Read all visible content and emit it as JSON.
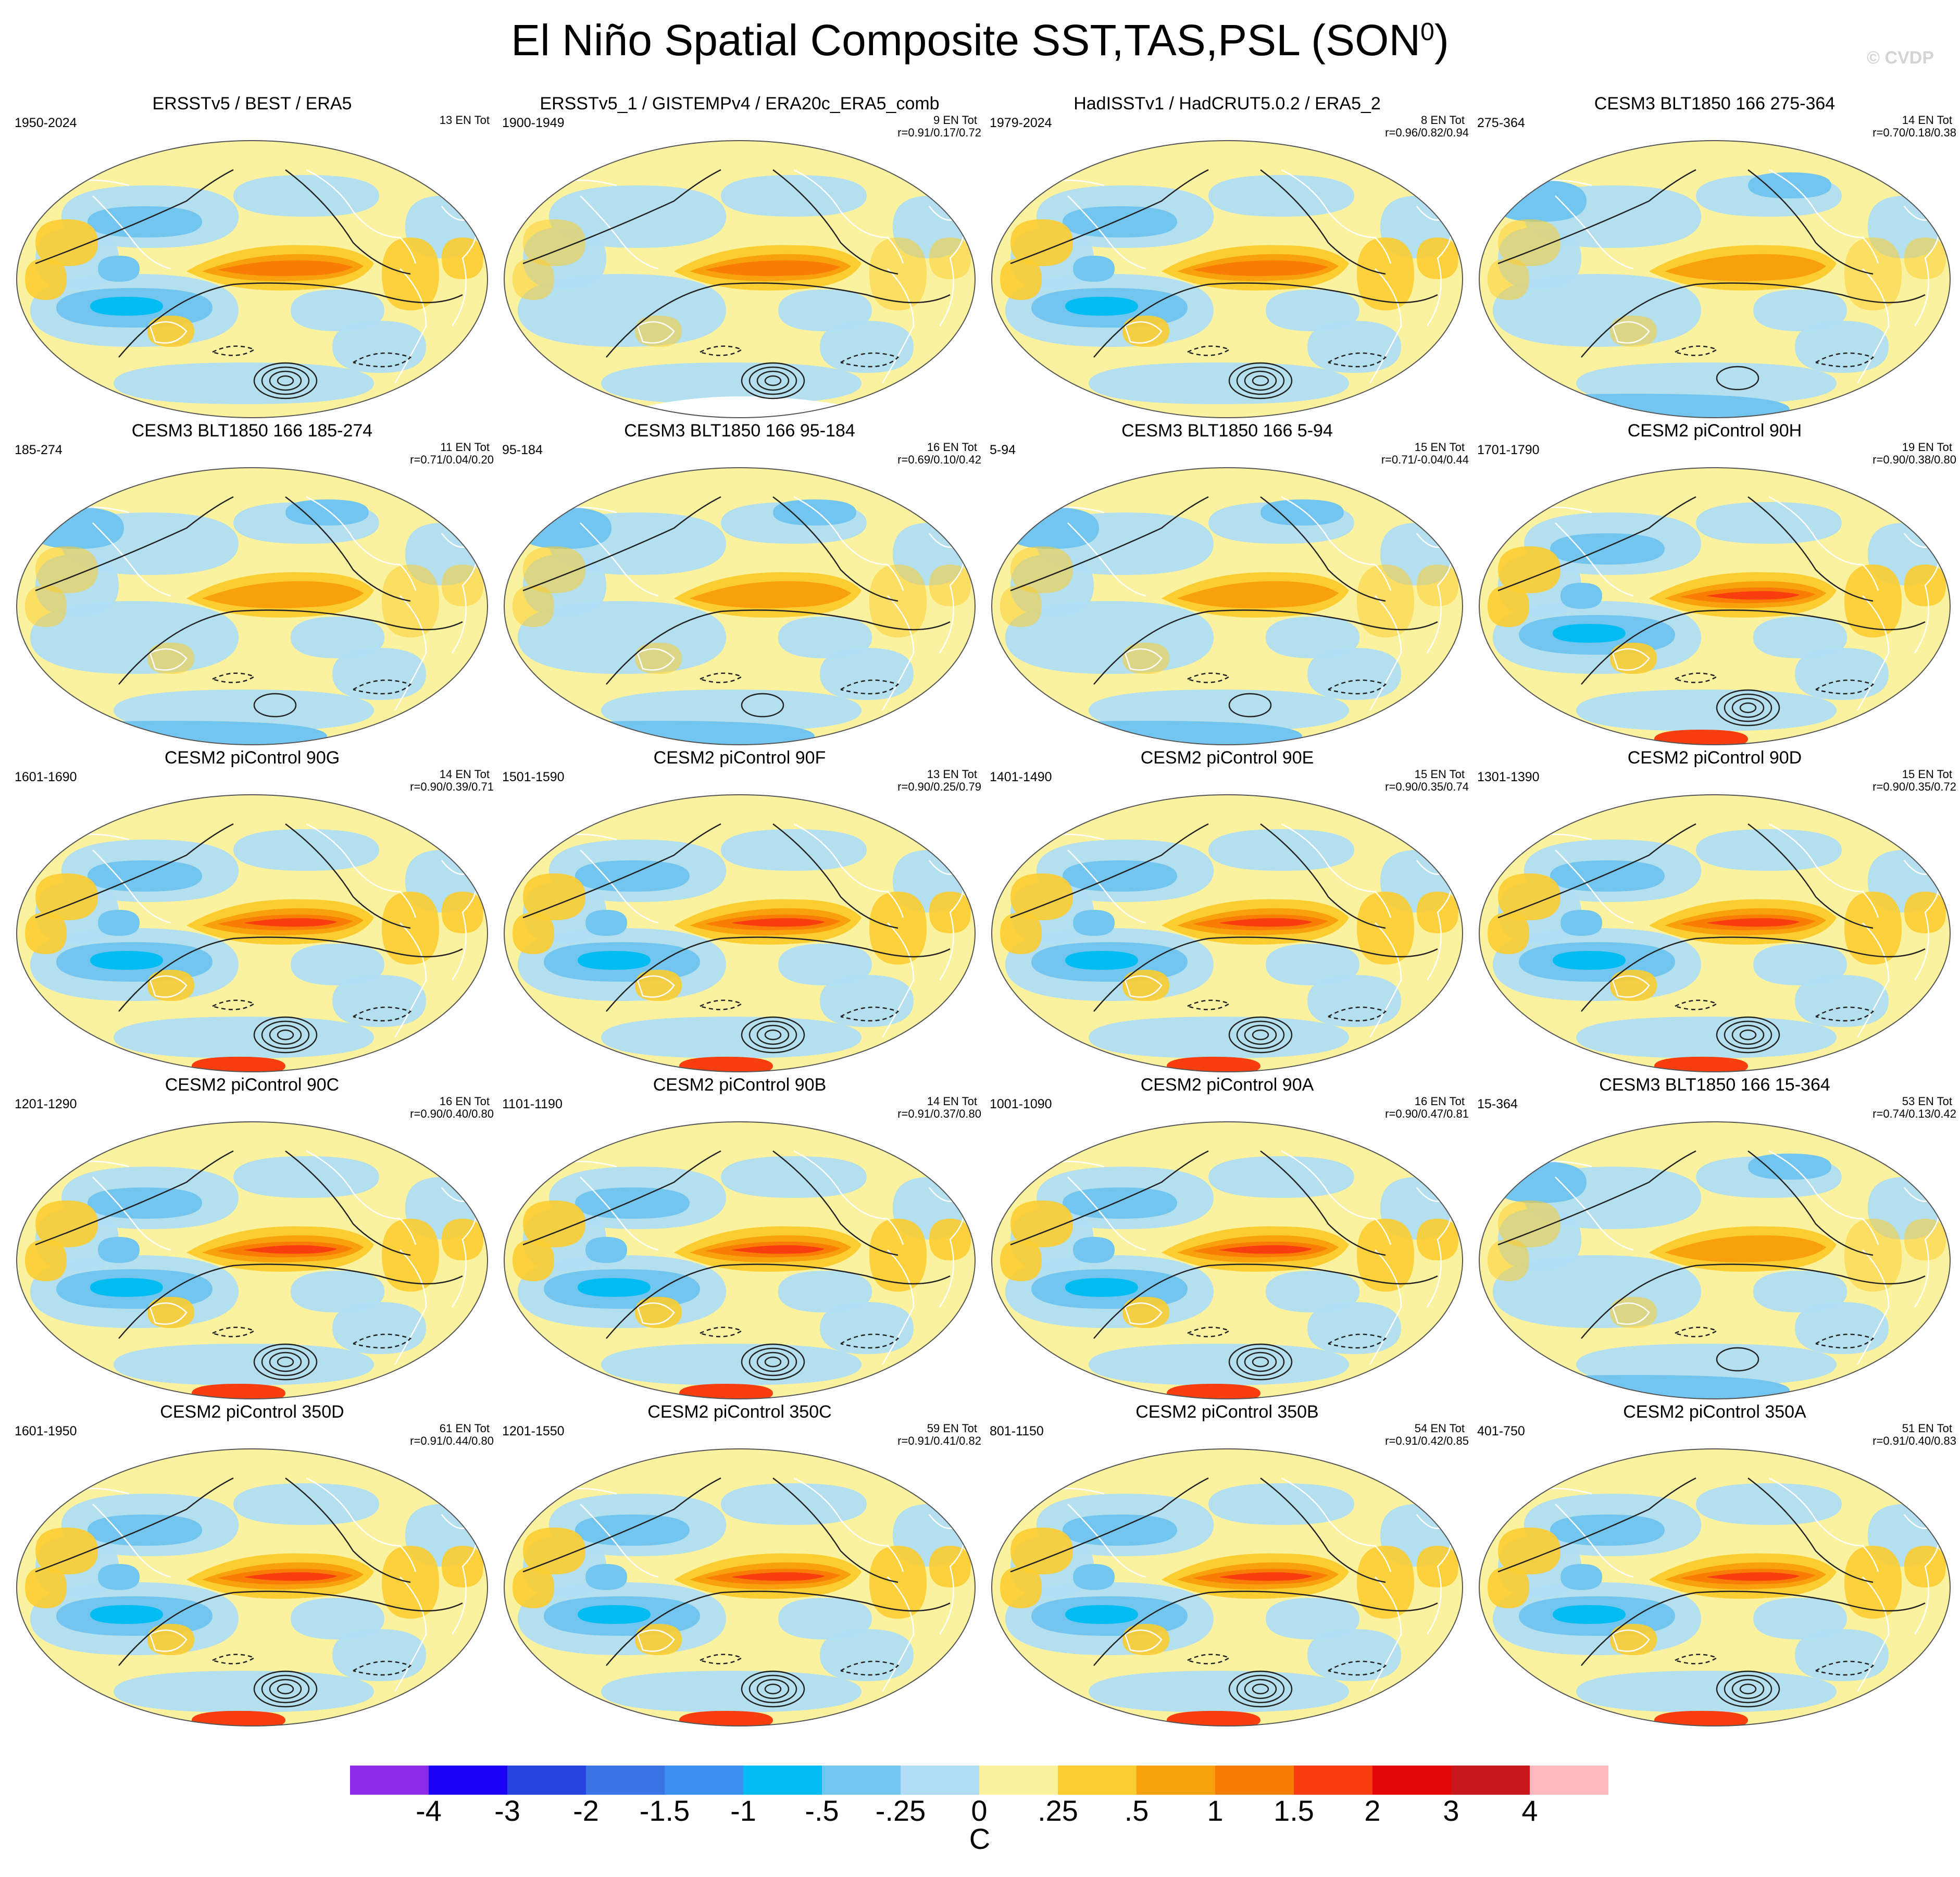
{
  "title": "El Niño Spatial Composite SST,TAS,PSL (SON",
  "title_sup": "0",
  "title_close": ")",
  "watermark": "© CVDP",
  "chart_data": {
    "type": "heatmap",
    "projection": "Robinson",
    "variables": [
      "SST",
      "TAS",
      "PSL"
    ],
    "season": "SON0",
    "colorbar": {
      "unit": "C",
      "tick_labels": [
        "-4",
        "-3",
        "-2",
        "-1.5",
        "-1",
        "-.5",
        "-.25",
        "0",
        ".25",
        ".5",
        "1",
        "1.5",
        "2",
        "3",
        "4"
      ],
      "levels": [
        -4,
        -3,
        -2,
        -1.5,
        -1,
        -0.5,
        -0.25,
        0,
        0.25,
        0.5,
        1,
        1.5,
        2,
        3,
        4
      ],
      "colors": [
        "#8a2be8",
        "#1c00f5",
        "#2744e0",
        "#3874e6",
        "#3d8ff0",
        "#00bcf0",
        "#72c5ee",
        "#b0ddf3",
        "#fbf2a0",
        "#fccd30",
        "#f8a10c",
        "#f97c06",
        "#f83e0e",
        "#e40606",
        "#c7181c",
        "#fdb8c0"
      ]
    },
    "panels": [
      {
        "title": "ERSSTv5 / BEST / ERA5",
        "period": "1950-2024",
        "count": "13 EN Tot",
        "stat": "",
        "variant": 0
      },
      {
        "title": "ERSSTv5_1 / GISTEMPv4 / ERA20c_ERA5_comb",
        "period": "1900-1949",
        "count": "9 EN Tot",
        "stat": "r=0.91/0.17/0.72",
        "variant": 1
      },
      {
        "title": "HadISSTv1 / HadCRUT5.0.2 / ERA5_2",
        "period": "1979-2024",
        "count": "8 EN Tot",
        "stat": "r=0.96/0.82/0.94",
        "variant": 0
      },
      {
        "title": "CESM3 BLT1850 166 275-364",
        "period": "275-364",
        "count": "14 EN Tot",
        "stat": "r=0.70/0.18/0.38",
        "variant": 2
      },
      {
        "title": "CESM3 BLT1850 166 185-274",
        "period": "185-274",
        "count": "11 EN Tot",
        "stat": "r=0.71/0.04/0.20",
        "variant": 2
      },
      {
        "title": "CESM3 BLT1850 166 95-184",
        "period": "95-184",
        "count": "16 EN Tot",
        "stat": "r=0.69/0.10/0.42",
        "variant": 2
      },
      {
        "title": "CESM3 BLT1850 166 5-94",
        "period": "5-94",
        "count": "15 EN Tot",
        "stat": "r=0.71/-0.04/0.44",
        "variant": 2
      },
      {
        "title": "CESM2 piControl 90H",
        "period": "1701-1790",
        "count": "19 EN Tot",
        "stat": "r=0.90/0.38/0.80",
        "variant": 3
      },
      {
        "title": "CESM2 piControl 90G",
        "period": "1601-1690",
        "count": "14 EN Tot",
        "stat": "r=0.90/0.39/0.71",
        "variant": 3
      },
      {
        "title": "CESM2 piControl 90F",
        "period": "1501-1590",
        "count": "13 EN Tot",
        "stat": "r=0.90/0.25/0.79",
        "variant": 3
      },
      {
        "title": "CESM2 piControl 90E",
        "period": "1401-1490",
        "count": "15 EN Tot",
        "stat": "r=0.90/0.35/0.74",
        "variant": 3
      },
      {
        "title": "CESM2 piControl 90D",
        "period": "1301-1390",
        "count": "15 EN Tot",
        "stat": "r=0.90/0.35/0.72",
        "variant": 3
      },
      {
        "title": "CESM2 piControl 90C",
        "period": "1201-1290",
        "count": "16 EN Tot",
        "stat": "r=0.90/0.40/0.80",
        "variant": 3
      },
      {
        "title": "CESM2 piControl 90B",
        "period": "1101-1190",
        "count": "14 EN Tot",
        "stat": "r=0.91/0.37/0.80",
        "variant": 3
      },
      {
        "title": "CESM2 piControl 90A",
        "period": "1001-1090",
        "count": "16 EN Tot",
        "stat": "r=0.90/0.47/0.81",
        "variant": 3
      },
      {
        "title": "CESM3 BLT1850 166 15-364",
        "period": "15-364",
        "count": "53 EN Tot",
        "stat": "r=0.74/0.13/0.42",
        "variant": 2
      },
      {
        "title": "CESM2 piControl 350D",
        "period": "1601-1950",
        "count": "61 EN Tot",
        "stat": "r=0.91/0.44/0.80",
        "variant": 3
      },
      {
        "title": "CESM2 piControl 350C",
        "period": "1201-1550",
        "count": "59 EN Tot",
        "stat": "r=0.91/0.41/0.82",
        "variant": 3
      },
      {
        "title": "CESM2 piControl 350B",
        "period": "801-1150",
        "count": "54 EN Tot",
        "stat": "r=0.91/0.42/0.85",
        "variant": 3
      },
      {
        "title": "CESM2 piControl 350A",
        "period": "401-750",
        "count": "51 EN Tot",
        "stat": "r=0.91/0.40/0.83",
        "variant": 3
      }
    ]
  }
}
